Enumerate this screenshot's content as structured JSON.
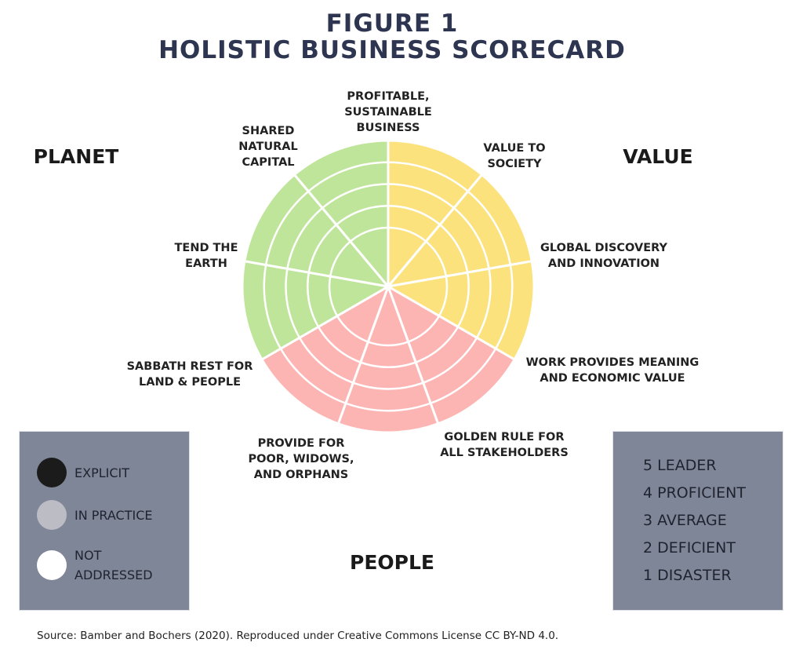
{
  "title": {
    "line1": "FIGURE 1",
    "line2": "HOLISTIC BUSINESS SCORECARD",
    "color": "#2d3550"
  },
  "categories": {
    "planet": "PLANET",
    "value": "VALUE",
    "people": "PEOPLE"
  },
  "wheel": {
    "levels": 5,
    "colors": {
      "planet": "#bfe59b",
      "value": "#fbe27d",
      "people": "#fdb5b3"
    },
    "sectors": [
      {
        "label": "VALUE TO SOCIETY",
        "group": "value"
      },
      {
        "label": "GLOBAL DISCOVERY AND INNOVATION",
        "group": "value"
      },
      {
        "label": "WORK PROVIDES MEANING AND ECONOMIC VALUE",
        "group": "value"
      },
      {
        "label": "GOLDEN RULE FOR ALL STAKEHOLDERS",
        "group": "people"
      },
      {
        "label": "PROVIDE FOR POOR, WIDOWS, AND ORPHANS",
        "group": "people"
      },
      {
        "label": "SABBATH REST FOR LAND & PEOPLE",
        "group": "people"
      },
      {
        "label": "TEND THE EARTH",
        "group": "planet"
      },
      {
        "label": "SHARED NATURAL CAPITAL",
        "group": "planet"
      },
      {
        "label": "PROFITABLE, SUSTAINABLE BUSINESS",
        "group": "planet"
      }
    ]
  },
  "labels": {
    "profitable": [
      "PROFITABLE,",
      "SUSTAINABLE",
      "BUSINESS"
    ],
    "shared": [
      "SHARED",
      "NATURAL",
      "CAPITAL"
    ],
    "value_society": [
      "VALUE TO",
      "SOCIETY"
    ],
    "tend": [
      "TEND THE",
      "EARTH"
    ],
    "global": [
      "GLOBAL DISCOVERY",
      "AND INNOVATION"
    ],
    "sabbath": [
      "SABBATH REST FOR",
      "LAND & PEOPLE"
    ],
    "work": [
      "WORK PROVIDES MEANING",
      "AND ECONOMIC VALUE"
    ],
    "provide": [
      "PROVIDE FOR",
      "POOR, WIDOWS,",
      "AND ORPHANS"
    ],
    "golden": [
      "GOLDEN RULE FOR",
      "ALL STAKEHOLDERS"
    ]
  },
  "legend_left": {
    "items": [
      {
        "label_lines": [
          "EXPLICIT"
        ],
        "color": "#1b1b1b"
      },
      {
        "label_lines": [
          "IN PRACTICE"
        ],
        "color": "#bcbcc4"
      },
      {
        "label_lines": [
          "NOT",
          "ADDRESSED"
        ],
        "color": "#ffffff"
      }
    ]
  },
  "legend_right": {
    "items": [
      "5 LEADER",
      "4 PROFICIENT",
      "3 AVERAGE",
      "2 DEFICIENT",
      "1 DISASTER"
    ]
  },
  "box_color": "#7f8697",
  "source": "Source: Bamber and Bochers (2020). Reproduced under Creative Commons License CC BY-ND 4.0."
}
